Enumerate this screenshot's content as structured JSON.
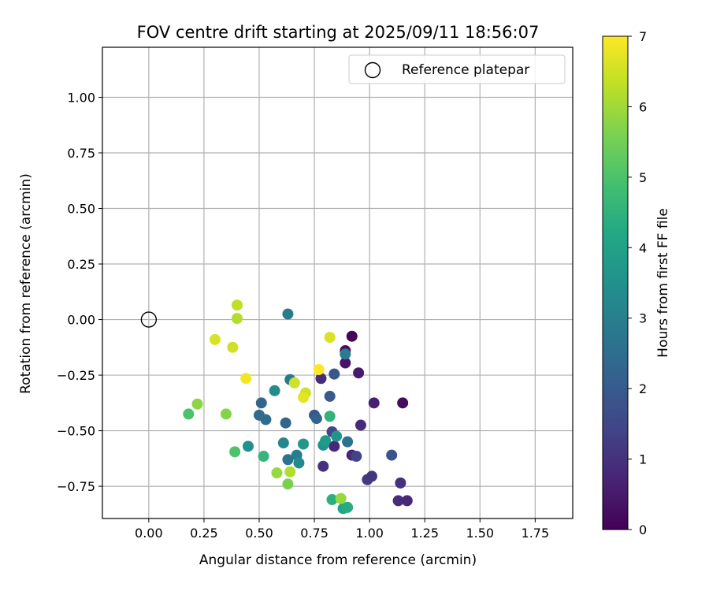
{
  "chart_data": {
    "type": "scatter",
    "title": "FOV centre drift starting at 2025/09/11 18:56:07",
    "xlabel": "Angular distance from reference (arcmin)",
    "ylabel": "Rotation from reference (arcmin)",
    "xlim": [
      -0.21,
      1.92
    ],
    "ylim": [
      -0.895,
      1.225
    ],
    "xticks": [
      0.0,
      0.25,
      0.5,
      0.75,
      1.0,
      1.25,
      1.5,
      1.75
    ],
    "xtick_labels": [
      "0.00",
      "0.25",
      "0.50",
      "0.75",
      "1.00",
      "1.25",
      "1.50",
      "1.75"
    ],
    "yticks": [
      -0.75,
      -0.5,
      -0.25,
      0.0,
      0.25,
      0.5,
      0.75,
      1.0
    ],
    "ytick_labels": [
      "−0.75",
      "−0.50",
      "−0.25",
      "0.00",
      "0.25",
      "0.50",
      "0.75",
      "1.00"
    ],
    "grid": true,
    "legend": {
      "position": "top-right",
      "entries": [
        "Reference platepar"
      ]
    },
    "reference_point": {
      "x": 0.0,
      "y": 0.0
    },
    "colorbar": {
      "label": "Hours from first FF file",
      "colormap": "viridis",
      "range": [
        0,
        7
      ],
      "ticks": [
        0,
        1,
        2,
        3,
        4,
        5,
        6,
        7
      ],
      "tick_labels": [
        "0",
        "1",
        "2",
        "3",
        "4",
        "5",
        "6",
        "7"
      ]
    },
    "points": [
      {
        "x": 0.92,
        "y": -0.075,
        "h": 0.1
      },
      {
        "x": 0.89,
        "y": -0.14,
        "h": 0.3
      },
      {
        "x": 0.89,
        "y": -0.195,
        "h": 0.4
      },
      {
        "x": 0.95,
        "y": -0.24,
        "h": 0.5
      },
      {
        "x": 1.02,
        "y": -0.375,
        "h": 0.6
      },
      {
        "x": 1.15,
        "y": -0.375,
        "h": 0.2
      },
      {
        "x": 0.96,
        "y": -0.475,
        "h": 0.8
      },
      {
        "x": 0.78,
        "y": -0.265,
        "h": 0.9
      },
      {
        "x": 0.84,
        "y": -0.57,
        "h": 0.8
      },
      {
        "x": 0.79,
        "y": -0.66,
        "h": 1.0
      },
      {
        "x": 0.92,
        "y": -0.61,
        "h": 0.7
      },
      {
        "x": 0.94,
        "y": -0.615,
        "h": 1.4
      },
      {
        "x": 1.1,
        "y": -0.61,
        "h": 1.8
      },
      {
        "x": 0.99,
        "y": -0.72,
        "h": 1.2
      },
      {
        "x": 1.01,
        "y": -0.705,
        "h": 1.1
      },
      {
        "x": 1.14,
        "y": -0.735,
        "h": 1.0
      },
      {
        "x": 1.13,
        "y": -0.815,
        "h": 0.9
      },
      {
        "x": 1.17,
        "y": -0.815,
        "h": 0.8
      },
      {
        "x": 0.83,
        "y": -0.505,
        "h": 1.5
      },
      {
        "x": 0.84,
        "y": -0.245,
        "h": 1.9
      },
      {
        "x": 0.82,
        "y": -0.345,
        "h": 2.0
      },
      {
        "x": 0.75,
        "y": -0.43,
        "h": 1.9
      },
      {
        "x": 0.76,
        "y": -0.445,
        "h": 2.2
      },
      {
        "x": 0.9,
        "y": -0.55,
        "h": 2.6
      },
      {
        "x": 0.89,
        "y": -0.155,
        "h": 2.9
      },
      {
        "x": 0.63,
        "y": 0.025,
        "h": 2.9
      },
      {
        "x": 0.64,
        "y": -0.27,
        "h": 2.8
      },
      {
        "x": 0.62,
        "y": -0.465,
        "h": 2.3
      },
      {
        "x": 0.51,
        "y": -0.375,
        "h": 2.3
      },
      {
        "x": 0.5,
        "y": -0.43,
        "h": 2.4
      },
      {
        "x": 0.53,
        "y": -0.45,
        "h": 2.5
      },
      {
        "x": 0.57,
        "y": -0.32,
        "h": 3.4
      },
      {
        "x": 0.61,
        "y": -0.555,
        "h": 3.2
      },
      {
        "x": 0.63,
        "y": -0.63,
        "h": 2.7
      },
      {
        "x": 0.67,
        "y": -0.61,
        "h": 2.9
      },
      {
        "x": 0.68,
        "y": -0.645,
        "h": 3.3
      },
      {
        "x": 0.7,
        "y": -0.56,
        "h": 3.7
      },
      {
        "x": 0.79,
        "y": -0.565,
        "h": 3.5
      },
      {
        "x": 0.8,
        "y": -0.545,
        "h": 3.8
      },
      {
        "x": 0.85,
        "y": -0.525,
        "h": 3.6
      },
      {
        "x": 0.45,
        "y": -0.57,
        "h": 3.5
      },
      {
        "x": 0.82,
        "y": -0.435,
        "h": 4.5
      },
      {
        "x": 0.52,
        "y": -0.615,
        "h": 4.6
      },
      {
        "x": 0.39,
        "y": -0.595,
        "h": 5.0
      },
      {
        "x": 0.18,
        "y": -0.425,
        "h": 5.0
      },
      {
        "x": 0.83,
        "y": -0.81,
        "h": 4.4
      },
      {
        "x": 0.88,
        "y": -0.85,
        "h": 4.1
      },
      {
        "x": 0.9,
        "y": -0.845,
        "h": 4.3
      },
      {
        "x": 0.87,
        "y": -0.805,
        "h": 5.9
      },
      {
        "x": 0.22,
        "y": -0.38,
        "h": 5.8
      },
      {
        "x": 0.35,
        "y": -0.425,
        "h": 5.7
      },
      {
        "x": 0.58,
        "y": -0.69,
        "h": 5.9
      },
      {
        "x": 0.63,
        "y": -0.74,
        "h": 5.6
      },
      {
        "x": 0.64,
        "y": -0.685,
        "h": 6.2
      },
      {
        "x": 0.4,
        "y": 0.065,
        "h": 6.3
      },
      {
        "x": 0.4,
        "y": 0.005,
        "h": 6.2
      },
      {
        "x": 0.38,
        "y": -0.125,
        "h": 6.5
      },
      {
        "x": 0.3,
        "y": -0.09,
        "h": 6.6
      },
      {
        "x": 0.44,
        "y": -0.265,
        "h": 6.9
      },
      {
        "x": 0.66,
        "y": -0.285,
        "h": 6.5
      },
      {
        "x": 0.71,
        "y": -0.33,
        "h": 6.5
      },
      {
        "x": 0.7,
        "y": -0.35,
        "h": 6.7
      },
      {
        "x": 0.77,
        "y": -0.225,
        "h": 7.0
      },
      {
        "x": 0.82,
        "y": -0.08,
        "h": 6.6
      }
    ]
  }
}
